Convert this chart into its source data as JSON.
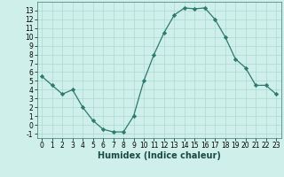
{
  "x": [
    0,
    1,
    2,
    3,
    4,
    5,
    6,
    7,
    8,
    9,
    10,
    11,
    12,
    13,
    14,
    15,
    16,
    17,
    18,
    19,
    20,
    21,
    22,
    23
  ],
  "y": [
    5.5,
    4.5,
    3.5,
    4.0,
    2.0,
    0.5,
    -0.5,
    -0.8,
    -0.8,
    1.0,
    5.0,
    8.0,
    10.5,
    12.5,
    13.3,
    13.2,
    13.3,
    12.0,
    10.0,
    7.5,
    6.5,
    4.5,
    4.5,
    3.5
  ],
  "xlabel": "Humidex (Indice chaleur)",
  "bg_color": "#cff0ea",
  "line_color": "#2d7a6e",
  "marker_color": "#2d7a6e",
  "grid_major_color": "#aad8d0",
  "grid_minor_color": "#c0e8e0",
  "ylim": [
    -1.5,
    14.0
  ],
  "xlim": [
    -0.5,
    23.5
  ],
  "yticks": [
    -1,
    0,
    1,
    2,
    3,
    4,
    5,
    6,
    7,
    8,
    9,
    10,
    11,
    12,
    13
  ],
  "xticks": [
    0,
    1,
    2,
    3,
    4,
    5,
    6,
    7,
    8,
    9,
    10,
    11,
    12,
    13,
    14,
    15,
    16,
    17,
    18,
    19,
    20,
    21,
    22,
    23
  ],
  "tick_fontsize": 5.5,
  "xlabel_fontsize": 7.0
}
